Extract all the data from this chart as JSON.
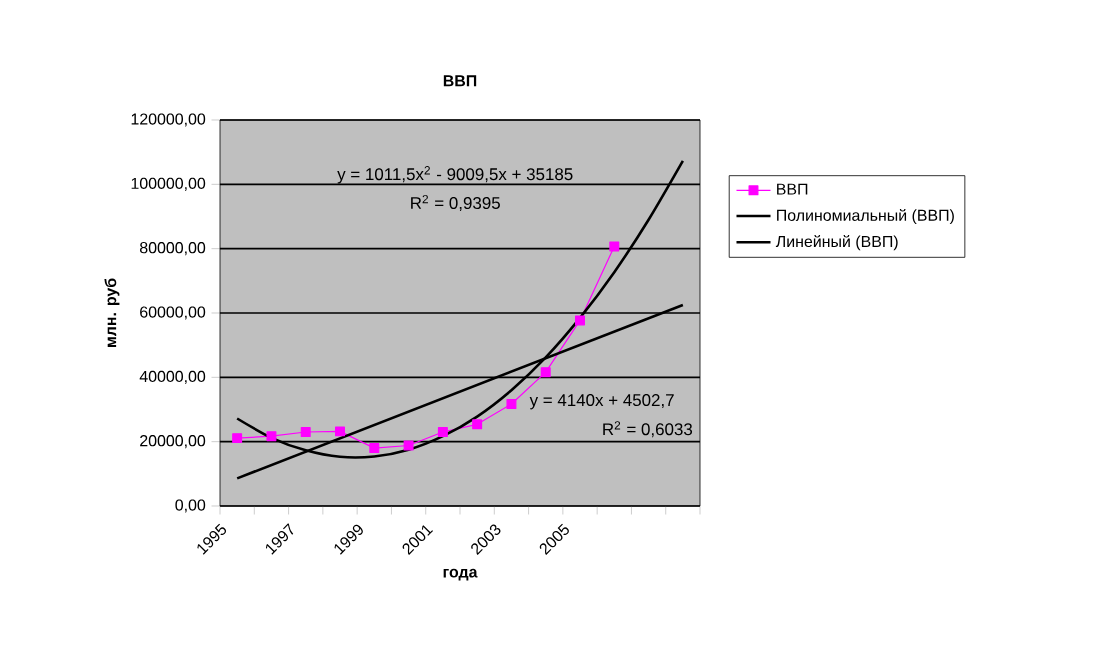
{
  "chart_data": {
    "type": "line",
    "title": "ВВП",
    "xlabel": "года",
    "ylabel": "млн. руб",
    "xlim": [
      1995,
      2009
    ],
    "xticks": [
      {
        "value": 1995,
        "label": "1995"
      },
      {
        "value": 1996,
        "label": null
      },
      {
        "value": 1997,
        "label": "1997"
      },
      {
        "value": 1998,
        "label": null
      },
      {
        "value": 1999,
        "label": "1999"
      },
      {
        "value": 2000,
        "label": null
      },
      {
        "value": 2001,
        "label": "2001"
      },
      {
        "value": 2002,
        "label": null
      },
      {
        "value": 2003,
        "label": "2003"
      },
      {
        "value": 2004,
        "label": null
      },
      {
        "value": 2005,
        "label": "2005"
      },
      {
        "value": 2006,
        "label": null
      },
      {
        "value": 2007,
        "label": null
      },
      {
        "value": 2008,
        "label": null
      },
      {
        "value": 2009,
        "label": null
      }
    ],
    "ylim": [
      0,
      120000
    ],
    "yticks": [
      {
        "value": 0,
        "label": "0,00"
      },
      {
        "value": 20000,
        "label": "20000,00"
      },
      {
        "value": 40000,
        "label": "40000,00"
      },
      {
        "value": 60000,
        "label": "60000,00"
      },
      {
        "value": 80000,
        "label": "80000,00"
      },
      {
        "value": 100000,
        "label": "100000,00"
      },
      {
        "value": 120000,
        "label": "120000,00"
      }
    ],
    "grid": "y",
    "legend": "right",
    "series": [
      {
        "name": "ВВП",
        "color": "#ff00ff",
        "marker": "square",
        "x": [
          1995.5,
          1996.5,
          1997.5,
          1998.5,
          1999.5,
          2000.5,
          2001.5,
          2002.5,
          2003.5,
          2004.5,
          2005.5,
          2006.5
        ],
        "values": [
          21100,
          21700,
          23000,
          23200,
          18000,
          18800,
          23000,
          25400,
          31700,
          41600,
          57700,
          80700
        ]
      },
      {
        "name": "Полиномиальный (ВВП)",
        "type": "line",
        "color": "#000000",
        "marker": "none",
        "x": [
          1995.5,
          1996.5,
          1997.5,
          1998.5,
          1999.5,
          2000.5,
          2001.5,
          2002.5,
          2003.5,
          2004.5,
          2005.5,
          2006.5,
          2007.5,
          2008.5
        ],
        "values": [
          27200,
          21200,
          17300,
          15300,
          15400,
          17500,
          21700,
          27800,
          36000,
          46200,
          58500,
          72700,
          89000,
          107300
        ]
      },
      {
        "name": "Линейный (ВВП)",
        "type": "line",
        "color": "#000000",
        "marker": "none",
        "x": [
          1995.5,
          2008.5
        ],
        "values": [
          8600,
          62500
        ]
      }
    ],
    "annotations": [
      "y = 1011,5x$^{2}$ - 9009,5x + 35185",
      "R$^{2}$ = 0,9395",
      "y = 4140x + 4502,7",
      "R$^{2}$ = 0,6033"
    ]
  }
}
